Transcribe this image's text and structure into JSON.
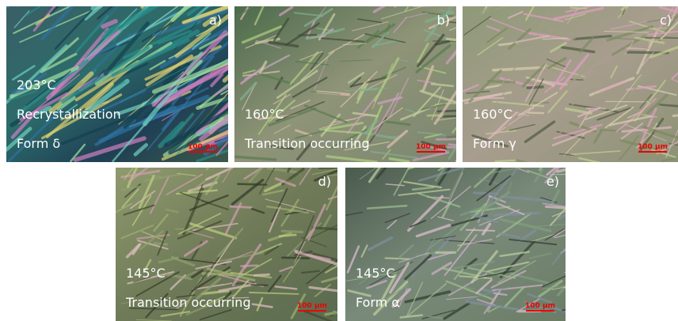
{
  "panels": [
    {
      "label": "a)",
      "lines": [
        "203°C",
        "Recrystallization",
        "Form δ"
      ],
      "scale_bar": "100 µm"
    },
    {
      "label": "b)",
      "lines": [
        "160°C",
        "Transition occurring"
      ],
      "scale_bar": "100 µm"
    },
    {
      "label": "c)",
      "lines": [
        "160°C",
        "Form γ"
      ],
      "scale_bar": "100 µm"
    },
    {
      "label": "d)",
      "lines": [
        "145°C",
        "Transition occurring"
      ],
      "scale_bar": "100 µm"
    },
    {
      "label": "e)",
      "lines": [
        "145°C",
        "Form α"
      ],
      "scale_bar": "100 µm"
    }
  ]
}
